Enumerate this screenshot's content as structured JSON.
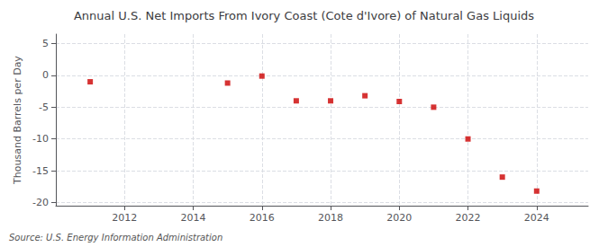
{
  "chart_data": {
    "type": "scatter",
    "title": "Annual U.S. Net Imports From Ivory Coast (Cote d'Ivore) of Natural Gas Liquids",
    "ylabel": "Thousand Barrels per Day",
    "source": "Source: U.S. Energy Information Administration",
    "x": [
      2011,
      2015,
      2016,
      2017,
      2018,
      2019,
      2020,
      2021,
      2022,
      2023,
      2024
    ],
    "values": [
      -1.0,
      -1.2,
      -0.1,
      -4.0,
      -4.0,
      -3.2,
      -4.1,
      -5.0,
      -10.0,
      -16.0,
      -18.2
    ],
    "color": "#cc0000",
    "marker": "square",
    "xlim": [
      2010.0,
      2025.5
    ],
    "ylim": [
      -20.5,
      6.5
    ],
    "xticks": [
      2012,
      2014,
      2016,
      2018,
      2020,
      2022,
      2024
    ],
    "yticks": [
      5,
      0,
      -5,
      -10,
      -15,
      -20
    ],
    "grid": true
  }
}
